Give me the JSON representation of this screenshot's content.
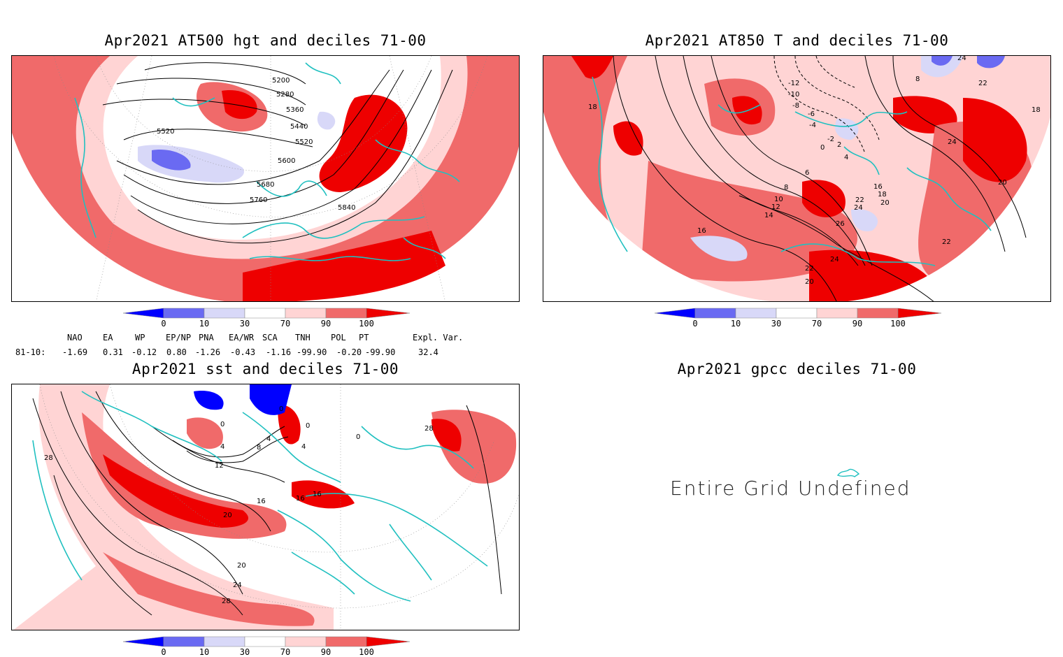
{
  "panels": {
    "hgt": {
      "title": "Apr2021 AT500 hgt and deciles 71-00",
      "contours": [
        "5200",
        "5280",
        "5360",
        "5440",
        "5520",
        "5520",
        "5600",
        "5680",
        "5760",
        "5840"
      ]
    },
    "t850": {
      "title": "Apr2021 AT850 T and deciles 71-00",
      "contours": [
        "-12",
        "-10",
        "-8",
        "-6",
        "-4",
        "-2",
        "0",
        "2",
        "4",
        "6",
        "8",
        "10",
        "12",
        "14",
        "16",
        "18",
        "20",
        "22",
        "24",
        "26",
        "16",
        "18",
        "20",
        "22",
        "24",
        "22",
        "20",
        "18",
        "24",
        "8",
        "22",
        "24"
      ]
    },
    "sst": {
      "title": "Apr2021 sst and deciles 71-00",
      "contours": [
        "0",
        "0",
        "0",
        "4",
        "4",
        "8",
        "4",
        "12",
        "16",
        "16",
        "16",
        "20",
        "20",
        "24",
        "28",
        "28",
        "28",
        "0"
      ]
    },
    "gpcc": {
      "title": "Apr2021 gpcc deciles 71-00",
      "message": "Entire Grid Undefined"
    }
  },
  "colorbar": {
    "labels": [
      "0",
      "10",
      "30",
      "70",
      "90",
      "100"
    ],
    "colors": [
      "#0000ff",
      "#6a6af2",
      "#d8d8f8",
      "#ffffff",
      "#ffd4d4",
      "#f06a6a",
      "#ee0000"
    ]
  },
  "indices": {
    "headers": [
      "NAO",
      "EA",
      "WP",
      "EP/NP",
      "PNA",
      "EA/WR",
      "SCA",
      "TNH",
      "POL",
      "PT",
      "Expl. Var."
    ],
    "row_label": "81-10:",
    "values": [
      "-1.69",
      "0.31",
      "-0.12",
      "0.80",
      "-1.26",
      "-0.43",
      "-1.16",
      "-99.90",
      "-0.20",
      "-99.90",
      "32.4"
    ]
  }
}
